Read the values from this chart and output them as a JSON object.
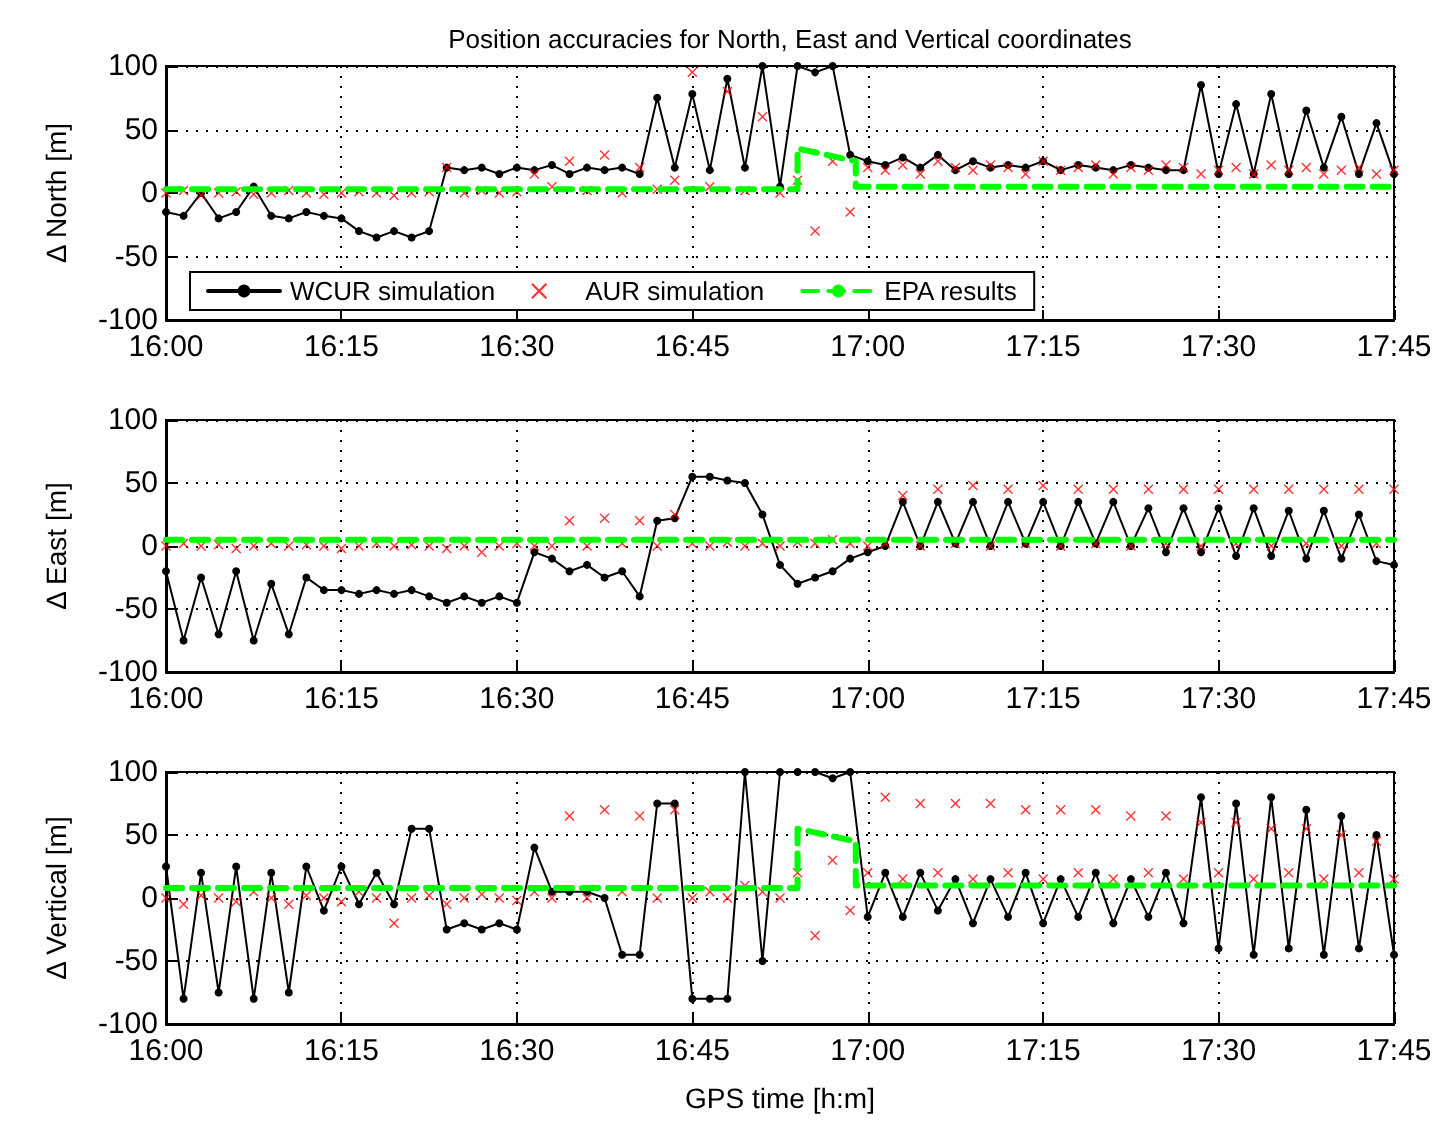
{
  "chart_data": [
    {
      "type": "line",
      "title": "Position accuracies for North, East and Vertical coordinates",
      "ylabel": "Δ North [m]",
      "x": [
        16,
        16.025,
        16.05,
        16.075,
        16.1,
        16.125,
        16.15,
        16.175,
        16.2,
        16.225,
        16.25,
        16.275,
        16.3,
        16.325,
        16.35,
        16.375,
        16.4,
        16.425,
        16.45,
        16.475,
        16.5,
        16.525,
        16.55,
        16.575,
        16.6,
        16.625,
        16.65,
        16.675,
        16.7,
        16.725,
        16.75,
        16.775,
        16.8,
        16.825,
        16.85,
        16.875,
        16.9,
        16.925,
        16.95,
        16.975,
        17,
        17.025,
        17.05,
        17.075,
        17.1,
        17.125,
        17.15,
        17.175,
        17.2,
        17.225,
        17.25,
        17.275,
        17.3,
        17.325,
        17.35,
        17.375,
        17.4,
        17.425,
        17.45,
        17.475,
        17.5,
        17.525,
        17.55,
        17.575,
        17.6,
        17.625,
        17.65,
        17.675,
        17.7,
        17.725,
        17.75
      ],
      "series": [
        {
          "name": "WCUR simulation",
          "color": "#000000",
          "marker": "circle",
          "line_style": "solid",
          "values": [
            -15,
            -18,
            0,
            -20,
            -15,
            5,
            -18,
            -20,
            -15,
            -18,
            -20,
            -30,
            -35,
            -30,
            -35,
            -30,
            20,
            18,
            20,
            15,
            20,
            18,
            22,
            15,
            20,
            18,
            20,
            15,
            75,
            20,
            78,
            18,
            90,
            20,
            100,
            5,
            100,
            95,
            100,
            30,
            25,
            22,
            28,
            20,
            30,
            18,
            25,
            20,
            22,
            20,
            25,
            18,
            22,
            20,
            18,
            22,
            20,
            18,
            18,
            85,
            15,
            70,
            15,
            78,
            15,
            65,
            20,
            60,
            15,
            55,
            15
          ]
        },
        {
          "name": "AUR simulation",
          "type": "scatter",
          "color": "#ff0000",
          "marker": "cross",
          "values": [
            0,
            2,
            -2,
            0,
            1,
            -1,
            0,
            2,
            0,
            -1,
            0,
            1,
            0,
            -2,
            0,
            1,
            20,
            0,
            2,
            0,
            1,
            15,
            5,
            25,
            2,
            30,
            0,
            20,
            3,
            10,
            95,
            5,
            80,
            2,
            60,
            0,
            10,
            -30,
            25,
            -15,
            20,
            18,
            22,
            15,
            25,
            20,
            18,
            22,
            20,
            15,
            25,
            18,
            20,
            22,
            15,
            20,
            18,
            22,
            20,
            15,
            18,
            20,
            15,
            22,
            18,
            20,
            15,
            18,
            20,
            15,
            18
          ]
        },
        {
          "name": "EPA results",
          "color": "#00ff00",
          "marker": "none",
          "line_style": "dashed",
          "x": [
            16,
            16.9,
            16.9,
            16.983,
            16.983,
            17.75
          ],
          "values": [
            3,
            3,
            35,
            25,
            5,
            5
          ]
        }
      ],
      "xlim": [
        16,
        17.75
      ],
      "xticks": [
        {
          "value": 16,
          "label": "16:00"
        },
        {
          "value": 16.25,
          "label": "16:15"
        },
        {
          "value": 16.5,
          "label": "16:30"
        },
        {
          "value": 16.75,
          "label": "16:45"
        },
        {
          "value": 17,
          "label": "17:00"
        },
        {
          "value": 17.25,
          "label": "17:15"
        },
        {
          "value": 17.5,
          "label": "17:30"
        },
        {
          "value": 17.75,
          "label": "17:45"
        }
      ],
      "ylim": [
        -100,
        100
      ],
      "yticks": [
        -100,
        -50,
        0,
        50,
        100
      ],
      "grid": true,
      "legend": "bottom left"
    },
    {
      "type": "line",
      "ylabel": "Δ East [m]",
      "x": [
        16,
        16.025,
        16.05,
        16.075,
        16.1,
        16.125,
        16.15,
        16.175,
        16.2,
        16.225,
        16.25,
        16.275,
        16.3,
        16.325,
        16.35,
        16.375,
        16.4,
        16.425,
        16.45,
        16.475,
        16.5,
        16.525,
        16.55,
        16.575,
        16.6,
        16.625,
        16.65,
        16.675,
        16.7,
        16.725,
        16.75,
        16.775,
        16.8,
        16.825,
        16.85,
        16.875,
        16.9,
        16.925,
        16.95,
        16.975,
        17,
        17.025,
        17.05,
        17.075,
        17.1,
        17.125,
        17.15,
        17.175,
        17.2,
        17.225,
        17.25,
        17.275,
        17.3,
        17.325,
        17.35,
        17.375,
        17.4,
        17.425,
        17.45,
        17.475,
        17.5,
        17.525,
        17.55,
        17.575,
        17.6,
        17.625,
        17.65,
        17.675,
        17.7,
        17.725,
        17.75
      ],
      "series": [
        {
          "color": "#000000",
          "marker": "circle",
          "line_style": "solid",
          "values": [
            -20,
            -75,
            -25,
            -70,
            -20,
            -75,
            -30,
            -70,
            -25,
            -35,
            -35,
            -38,
            -35,
            -38,
            -35,
            -40,
            -45,
            -40,
            -45,
            -40,
            -45,
            -5,
            -10,
            -20,
            -15,
            -25,
            -20,
            -40,
            20,
            22,
            55,
            55,
            52,
            50,
            25,
            -15,
            -30,
            -25,
            -20,
            -10,
            -5,
            0,
            35,
            0,
            35,
            2,
            35,
            0,
            35,
            2,
            35,
            0,
            35,
            2,
            35,
            0,
            30,
            -5,
            30,
            -5,
            30,
            -8,
            30,
            -8,
            28,
            -10,
            28,
            -10,
            25,
            -12,
            -15
          ]
        },
        {
          "type": "scatter",
          "color": "#ff0000",
          "marker": "cross",
          "values": [
            0,
            2,
            0,
            1,
            -2,
            0,
            2,
            0,
            1,
            0,
            -2,
            0,
            2,
            0,
            1,
            0,
            -2,
            0,
            -5,
            0,
            2,
            0,
            0,
            20,
            0,
            22,
            2,
            20,
            0,
            25,
            2,
            0,
            3,
            0,
            2,
            0,
            3,
            2,
            5,
            2,
            0,
            2,
            40,
            0,
            45,
            2,
            48,
            0,
            45,
            2,
            48,
            0,
            45,
            2,
            45,
            0,
            45,
            2,
            45,
            0,
            45,
            2,
            45,
            0,
            45,
            2,
            45,
            0,
            45,
            2,
            45
          ]
        },
        {
          "color": "#00ff00",
          "marker": "none",
          "line_style": "dashed",
          "x": [
            16,
            16.9,
            17.75
          ],
          "values": [
            5,
            5,
            5
          ]
        }
      ],
      "xlim": [
        16,
        17.75
      ],
      "xticks": [
        {
          "value": 16,
          "label": "16:00"
        },
        {
          "value": 16.25,
          "label": "16:15"
        },
        {
          "value": 16.5,
          "label": "16:30"
        },
        {
          "value": 16.75,
          "label": "16:45"
        },
        {
          "value": 17,
          "label": "17:00"
        },
        {
          "value": 17.25,
          "label": "17:15"
        },
        {
          "value": 17.5,
          "label": "17:30"
        },
        {
          "value": 17.75,
          "label": "17:45"
        }
      ],
      "ylim": [
        -100,
        100
      ],
      "yticks": [
        -100,
        -50,
        0,
        50,
        100
      ],
      "grid": true
    },
    {
      "type": "line",
      "ylabel": "Δ Vertical [m]",
      "xlabel": "GPS time [h:m]",
      "x": [
        16,
        16.025,
        16.05,
        16.075,
        16.1,
        16.125,
        16.15,
        16.175,
        16.2,
        16.225,
        16.25,
        16.275,
        16.3,
        16.325,
        16.35,
        16.375,
        16.4,
        16.425,
        16.45,
        16.475,
        16.5,
        16.525,
        16.55,
        16.575,
        16.6,
        16.625,
        16.65,
        16.675,
        16.7,
        16.725,
        16.75,
        16.775,
        16.8,
        16.825,
        16.85,
        16.875,
        16.9,
        16.925,
        16.95,
        16.975,
        17,
        17.025,
        17.05,
        17.075,
        17.1,
        17.125,
        17.15,
        17.175,
        17.2,
        17.225,
        17.25,
        17.275,
        17.3,
        17.325,
        17.35,
        17.375,
        17.4,
        17.425,
        17.45,
        17.475,
        17.5,
        17.525,
        17.55,
        17.575,
        17.6,
        17.625,
        17.65,
        17.675,
        17.7,
        17.725,
        17.75
      ],
      "series": [
        {
          "color": "#000000",
          "marker": "circle",
          "line_style": "solid",
          "values": [
            25,
            -80,
            20,
            -75,
            25,
            -80,
            20,
            -75,
            25,
            -10,
            25,
            -5,
            20,
            -5,
            55,
            55,
            -25,
            -20,
            -25,
            -20,
            -25,
            40,
            5,
            5,
            5,
            0,
            -45,
            -45,
            75,
            75,
            -80,
            -80,
            -80,
            100,
            -50,
            100,
            100,
            100,
            95,
            100,
            -15,
            20,
            -15,
            20,
            -10,
            15,
            -20,
            15,
            -15,
            20,
            -20,
            15,
            -15,
            20,
            -20,
            15,
            -15,
            20,
            -20,
            80,
            -40,
            75,
            -45,
            80,
            -40,
            70,
            -45,
            65,
            -40,
            50,
            -45
          ]
        },
        {
          "type": "scatter",
          "color": "#ff0000",
          "marker": "cross",
          "values": [
            0,
            -5,
            2,
            0,
            -3,
            5,
            0,
            -5,
            2,
            0,
            -3,
            5,
            0,
            -20,
            0,
            2,
            -5,
            0,
            3,
            0,
            -2,
            5,
            0,
            65,
            0,
            70,
            5,
            65,
            0,
            70,
            0,
            5,
            0,
            10,
            5,
            0,
            20,
            -30,
            30,
            -10,
            20,
            80,
            15,
            75,
            20,
            75,
            15,
            75,
            20,
            70,
            15,
            70,
            20,
            70,
            15,
            65,
            20,
            65,
            15,
            60,
            20,
            60,
            15,
            55,
            20,
            55,
            15,
            50,
            20,
            45,
            15
          ]
        },
        {
          "color": "#00ff00",
          "marker": "none",
          "line_style": "dashed",
          "x": [
            16,
            16.9,
            16.9,
            16.983,
            16.983,
            17.75
          ],
          "values": [
            8,
            8,
            55,
            45,
            10,
            10
          ]
        }
      ],
      "xlim": [
        16,
        17.75
      ],
      "xticks": [
        {
          "value": 16,
          "label": "16:00"
        },
        {
          "value": 16.25,
          "label": "16:15"
        },
        {
          "value": 16.5,
          "label": "16:30"
        },
        {
          "value": 16.75,
          "label": "16:45"
        },
        {
          "value": 17,
          "label": "17:00"
        },
        {
          "value": 17.25,
          "label": "17:15"
        },
        {
          "value": 17.5,
          "label": "17:30"
        },
        {
          "value": 17.75,
          "label": "17:45"
        }
      ],
      "ylim": [
        -100,
        100
      ],
      "yticks": [
        -100,
        -50,
        0,
        50,
        100
      ],
      "grid": true
    }
  ]
}
